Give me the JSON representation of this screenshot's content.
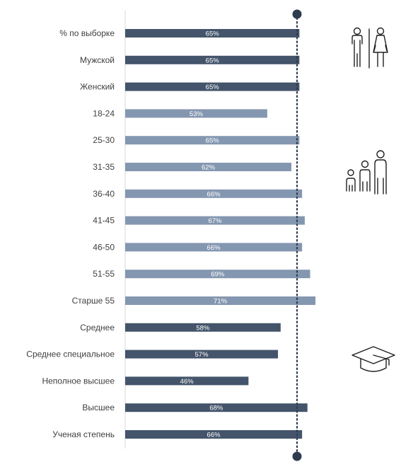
{
  "chart_data": {
    "type": "bar",
    "orientation": "horizontal",
    "categories": [
      "% по выборке",
      "Мужской",
      "Женский",
      "18-24",
      "25-30",
      "31-35",
      "36-40",
      "41-45",
      "46-50",
      "51-55",
      "Старше 55",
      "Среднее",
      "Среднее специальное",
      "Неполное высшее",
      "Высшее",
      "Ученая степень"
    ],
    "values": [
      65,
      65,
      65,
      53,
      65,
      62,
      66,
      67,
      66,
      69,
      71,
      58,
      57,
      46,
      68,
      66
    ],
    "value_labels": [
      "65%",
      "65%",
      "65%",
      "53%",
      "65%",
      "62%",
      "66%",
      "67%",
      "66%",
      "69%",
      "71%",
      "58%",
      "57%",
      "46%",
      "68%",
      "66%"
    ],
    "groups": [
      "gender",
      "gender",
      "gender",
      "age",
      "age",
      "age",
      "age",
      "age",
      "age",
      "age",
      "age",
      "education",
      "education",
      "education",
      "education",
      "education"
    ],
    "group_colors": {
      "gender": "#44546a",
      "age": "#8497b0",
      "education": "#44546a"
    },
    "reference_line": {
      "value": 65,
      "style": "dotted"
    },
    "xlim": [
      0,
      100
    ],
    "title": "",
    "xlabel": "",
    "ylabel": ""
  },
  "icons": {
    "gender": "male-female-icon",
    "age": "family-age-icon",
    "education": "graduation-cap-icon"
  }
}
